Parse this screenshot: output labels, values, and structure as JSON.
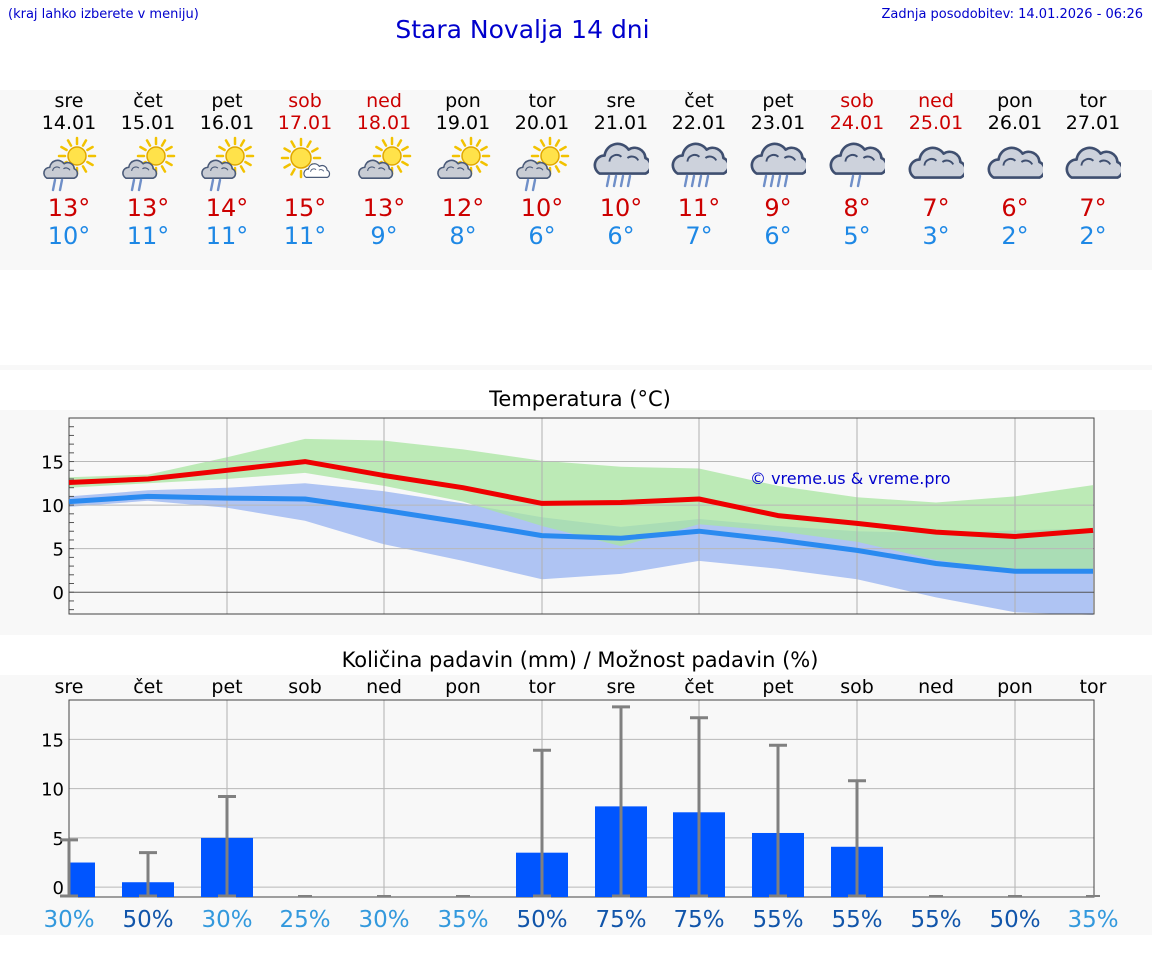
{
  "header": {
    "hint": "(kraj lahko izberete v meniju)",
    "title": "Stara Novalja 14 dni",
    "updated": "Zadnja posodobitev: 14.01.2026 - 06:26"
  },
  "days": [
    {
      "name": "sre",
      "date": "14.01",
      "weekend": false,
      "icon": "sun-cloud-rain-icon",
      "tmax": "13°",
      "tmin": "10°"
    },
    {
      "name": "čet",
      "date": "15.01",
      "weekend": false,
      "icon": "sun-cloud-rain-icon",
      "tmax": "13°",
      "tmin": "11°"
    },
    {
      "name": "pet",
      "date": "16.01",
      "weekend": false,
      "icon": "sun-cloud-rain-icon",
      "tmax": "14°",
      "tmin": "11°"
    },
    {
      "name": "sob",
      "date": "17.01",
      "weekend": true,
      "icon": "sun-small-cloud-icon",
      "tmax": "15°",
      "tmin": "11°"
    },
    {
      "name": "ned",
      "date": "18.01",
      "weekend": true,
      "icon": "sun-cloud-icon",
      "tmax": "13°",
      "tmin": "9°"
    },
    {
      "name": "pon",
      "date": "19.01",
      "weekend": false,
      "icon": "sun-cloud-icon",
      "tmax": "12°",
      "tmin": "8°"
    },
    {
      "name": "tor",
      "date": "20.01",
      "weekend": false,
      "icon": "sun-cloud-rain-icon",
      "tmax": "10°",
      "tmin": "6°"
    },
    {
      "name": "sre",
      "date": "21.01",
      "weekend": false,
      "icon": "cloud-heavy-rain-icon",
      "tmax": "10°",
      "tmin": "6°"
    },
    {
      "name": "čet",
      "date": "22.01",
      "weekend": false,
      "icon": "cloud-heavy-rain-icon",
      "tmax": "11°",
      "tmin": "7°"
    },
    {
      "name": "pet",
      "date": "23.01",
      "weekend": false,
      "icon": "cloud-heavy-rain-icon",
      "tmax": "9°",
      "tmin": "6°"
    },
    {
      "name": "sob",
      "date": "24.01",
      "weekend": true,
      "icon": "cloud-light-rain-icon",
      "tmax": "8°",
      "tmin": "5°"
    },
    {
      "name": "ned",
      "date": "25.01",
      "weekend": true,
      "icon": "cloud-icon",
      "tmax": "7°",
      "tmin": "3°"
    },
    {
      "name": "pon",
      "date": "26.01",
      "weekend": false,
      "icon": "cloud-icon",
      "tmax": "6°",
      "tmin": "2°"
    },
    {
      "name": "tor",
      "date": "27.01",
      "weekend": false,
      "icon": "cloud-icon",
      "tmax": "7°",
      "tmin": "2°"
    }
  ],
  "colors": {
    "max_line": "#ee0000",
    "min_line": "#2a8af0",
    "max_band": "#a8e6a0",
    "min_band": "#a6bef2",
    "overlap_band": "#7ec4a6",
    "bar": "#0055ff",
    "whisker": "#808080",
    "prob_light": "#3399dd",
    "prob_dark": "#1155aa",
    "watermark": "#0000cc"
  },
  "chart_data": [
    {
      "type": "line",
      "title": "Temperatura (°C)",
      "watermark": "© vreme.us & vreme.pro",
      "ylim": [
        -2.5,
        20
      ],
      "yticks": [
        0,
        5,
        10,
        15
      ],
      "series": [
        {
          "name": "max",
          "values": [
            12.6,
            13.0,
            14.0,
            15.0,
            13.4,
            12.0,
            10.2,
            10.3,
            10.7,
            8.8,
            7.9,
            6.9,
            6.4,
            7.1
          ]
        },
        {
          "name": "min",
          "values": [
            10.4,
            11.0,
            10.8,
            10.7,
            9.4,
            8.0,
            6.5,
            6.2,
            7.0,
            6.0,
            4.8,
            3.3,
            2.4,
            2.4
          ]
        },
        {
          "name": "max_band_upper",
          "values": [
            13.2,
            13.5,
            15.5,
            17.6,
            17.4,
            16.4,
            15.1,
            14.4,
            14.2,
            12.2,
            10.9,
            10.3,
            11.0,
            12.3
          ]
        },
        {
          "name": "max_band_lower",
          "values": [
            12.0,
            12.5,
            13.0,
            13.7,
            12.2,
            10.4,
            7.6,
            5.3,
            7.8,
            7.0,
            5.8,
            3.7,
            2.4,
            2.4
          ]
        },
        {
          "name": "min_band_upper",
          "values": [
            11.0,
            11.7,
            12.0,
            12.5,
            11.6,
            10.2,
            8.6,
            7.5,
            8.4,
            7.6,
            7.0,
            6.8,
            7.1,
            7.3
          ]
        },
        {
          "name": "min_band_lower",
          "values": [
            9.8,
            10.5,
            9.7,
            8.2,
            5.5,
            3.6,
            1.5,
            2.1,
            3.6,
            2.7,
            1.5,
            -0.6,
            -2.3,
            -2.6
          ]
        }
      ]
    },
    {
      "type": "bar",
      "title": "Količina padavin (mm) / Možnost padavin (%)",
      "ylim": [
        -1,
        19
      ],
      "yticks": [
        0,
        5,
        10,
        15
      ],
      "categories": [
        "sre",
        "čet",
        "pet",
        "sob",
        "ned",
        "pon",
        "tor",
        "sre",
        "čet",
        "pet",
        "sob",
        "ned",
        "pon",
        "tor"
      ],
      "values": [
        2.5,
        0.5,
        5.0,
        0,
        0,
        0,
        3.5,
        8.2,
        7.6,
        5.5,
        4.1,
        0,
        0,
        0
      ],
      "max_values": [
        4.8,
        3.5,
        9.2,
        0,
        0,
        0,
        13.9,
        18.3,
        17.2,
        14.4,
        10.8,
        0,
        0,
        0
      ],
      "probability": [
        "30%",
        "50%",
        "30%",
        "25%",
        "30%",
        "35%",
        "50%",
        "75%",
        "75%",
        "55%",
        "55%",
        "55%",
        "50%",
        "35%"
      ]
    }
  ]
}
